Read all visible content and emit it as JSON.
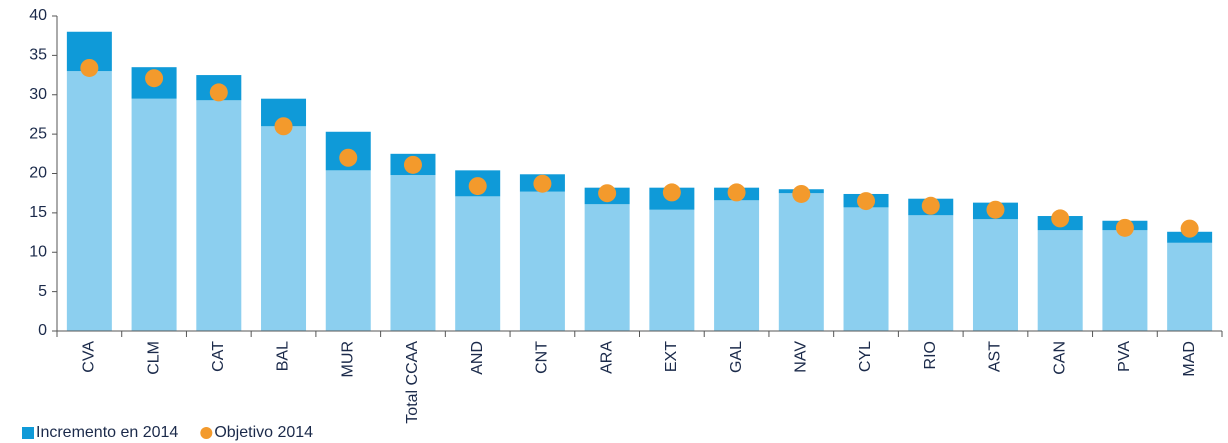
{
  "chart_data": {
    "type": "bar",
    "stacked": true,
    "grid": false,
    "categories": [
      "CVA",
      "CLM",
      "CAT",
      "BAL",
      "MUR",
      "Total CCAA",
      "AND",
      "CNT",
      "ARA",
      "EXT",
      "GAL",
      "NAV",
      "CYL",
      "RIO",
      "AST",
      "CAN",
      "PVA",
      "MAD"
    ],
    "series": [
      {
        "color": "#8ccfef",
        "values": [
          33.0,
          29.5,
          29.3,
          26.0,
          20.4,
          19.8,
          17.1,
          17.7,
          16.1,
          15.4,
          16.6,
          17.5,
          15.7,
          14.7,
          14.2,
          12.8,
          12.8,
          11.2
        ]
      },
      {
        "name": "Incremento en 2014",
        "color": "#0f9ad8",
        "values": [
          5.0,
          4.0,
          3.2,
          3.5,
          4.9,
          2.7,
          3.3,
          2.2,
          2.1,
          2.8,
          1.6,
          0.5,
          1.7,
          2.1,
          2.1,
          1.8,
          1.2,
          1.4
        ]
      },
      {
        "name": "Objetivo 2014",
        "type": "scatter",
        "color": "#f39a2c",
        "values": [
          33.4,
          32.1,
          30.3,
          26.0,
          22.0,
          21.1,
          18.4,
          18.7,
          17.5,
          17.6,
          17.6,
          17.4,
          16.5,
          15.9,
          15.4,
          14.3,
          13.1,
          13.0
        ]
      }
    ],
    "ylim": [
      0,
      40
    ],
    "yticks": [
      0,
      5,
      10,
      15,
      20,
      25,
      30,
      35,
      40
    ]
  }
}
